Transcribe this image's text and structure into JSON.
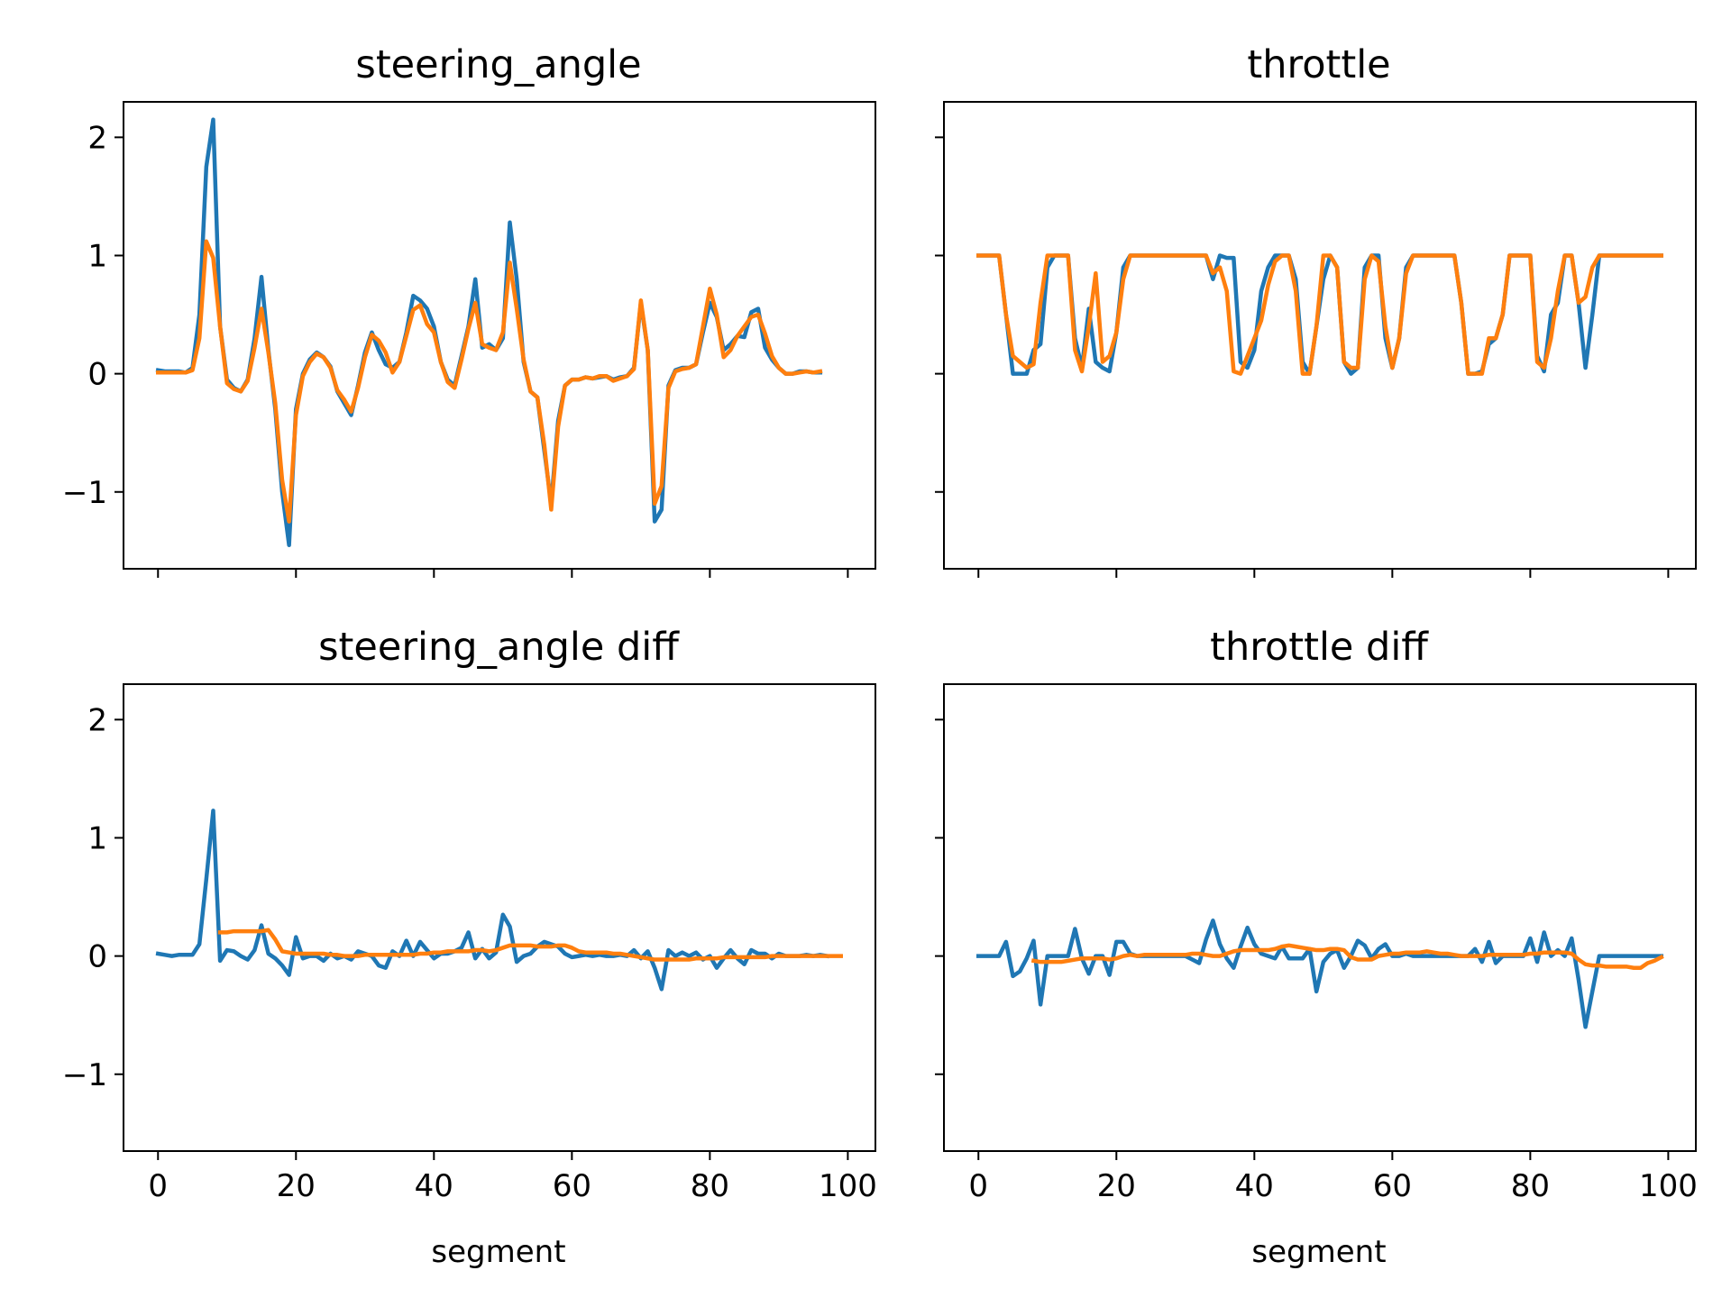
{
  "colors": {
    "raw": "#1f77b4",
    "smoothed": "#ff7f0e",
    "frame": "#000000"
  },
  "chart_data": [
    {
      "type": "line",
      "title": "steering_angle",
      "xlabel": "",
      "ylabel": "",
      "xlim": [
        -5,
        104
      ],
      "ylim": [
        -1.65,
        2.3
      ],
      "xticks": [
        0,
        20,
        40,
        60,
        80,
        100
      ],
      "yticks": [
        -1,
        0,
        1,
        2
      ],
      "ytick_labels": [
        "−1",
        "0",
        "1",
        "2"
      ],
      "show_xtick_labels": false,
      "show_ytick_labels": true,
      "series": [
        {
          "x_start": 0,
          "values": [
            0.03,
            0.02,
            0.02,
            0.02,
            0.01,
            0.05,
            0.5,
            1.75,
            2.15,
            0.4,
            -0.05,
            -0.12,
            -0.15,
            -0.05,
            0.3,
            0.82,
            0.2,
            -0.3,
            -1.0,
            -1.45,
            -0.3,
            0.0,
            0.12,
            0.18,
            0.14,
            0.06,
            -0.15,
            -0.25,
            -0.35,
            -0.1,
            0.18,
            0.35,
            0.2,
            0.08,
            0.05,
            0.1,
            0.35,
            0.66,
            0.62,
            0.55,
            0.4,
            0.1,
            -0.05,
            -0.1,
            0.15,
            0.4,
            0.8,
            0.22,
            0.25,
            0.2,
            0.3,
            1.28,
            0.8,
            0.1,
            -0.15,
            -0.2,
            -0.65,
            -1.1,
            -0.4,
            -0.1,
            -0.05,
            -0.05,
            -0.03,
            -0.04,
            -0.03,
            -0.02,
            -0.05,
            -0.03,
            -0.02,
            0.05,
            0.6,
            0.2,
            -1.25,
            -1.15,
            -0.1,
            0.03,
            0.05,
            0.05,
            0.08,
            0.35,
            0.6,
            0.48,
            0.2,
            0.25,
            0.32,
            0.31,
            0.52,
            0.55,
            0.22,
            0.12,
            0.05,
            0.0,
            0.0,
            0.02,
            0.02,
            0.01,
            0.01
          ]
        },
        {
          "x_start": 0,
          "values": [
            0.01,
            0.01,
            0.01,
            0.01,
            0.01,
            0.03,
            0.3,
            1.12,
            0.98,
            0.4,
            -0.08,
            -0.13,
            -0.15,
            -0.06,
            0.22,
            0.55,
            0.18,
            -0.25,
            -0.9,
            -1.25,
            -0.35,
            -0.02,
            0.1,
            0.17,
            0.14,
            0.05,
            -0.14,
            -0.22,
            -0.32,
            -0.12,
            0.14,
            0.33,
            0.28,
            0.18,
            0.01,
            0.1,
            0.32,
            0.54,
            0.58,
            0.42,
            0.35,
            0.1,
            -0.07,
            -0.12,
            0.12,
            0.38,
            0.6,
            0.25,
            0.22,
            0.2,
            0.35,
            0.94,
            0.55,
            0.12,
            -0.15,
            -0.2,
            -0.6,
            -1.15,
            -0.45,
            -0.1,
            -0.05,
            -0.05,
            -0.03,
            -0.04,
            -0.02,
            -0.02,
            -0.06,
            -0.04,
            -0.02,
            0.04,
            0.62,
            0.2,
            -1.1,
            -0.95,
            -0.12,
            0.02,
            0.04,
            0.05,
            0.08,
            0.4,
            0.72,
            0.5,
            0.14,
            0.2,
            0.32,
            0.4,
            0.48,
            0.5,
            0.34,
            0.15,
            0.05,
            0.0,
            0.0,
            0.01,
            0.02,
            0.01,
            0.02
          ]
        }
      ]
    },
    {
      "type": "line",
      "title": "throttle",
      "xlabel": "",
      "ylabel": "",
      "xlim": [
        -5,
        104
      ],
      "ylim": [
        -1.65,
        2.3
      ],
      "xticks": [
        0,
        20,
        40,
        60,
        80,
        100
      ],
      "yticks": [
        -1,
        0,
        1,
        2
      ],
      "ytick_labels": [
        "−1",
        "0",
        "1",
        "2"
      ],
      "show_xtick_labels": false,
      "show_ytick_labels": false,
      "series": [
        {
          "x_start": 0,
          "values": [
            1,
            1,
            1,
            1,
            0.5,
            0.0,
            0.0,
            0.0,
            0.2,
            0.25,
            0.9,
            1,
            1,
            1,
            0.3,
            0.05,
            0.55,
            0.1,
            0.05,
            0.02,
            0.35,
            0.9,
            1,
            1,
            1,
            1,
            1,
            1,
            1,
            1,
            1,
            1,
            1,
            1,
            0.8,
            1,
            0.98,
            0.98,
            0.1,
            0.05,
            0.2,
            0.7,
            0.9,
            1,
            1,
            1,
            0.8,
            0.1,
            0.0,
            0.4,
            0.8,
            1,
            0.9,
            0.1,
            0.0,
            0.05,
            0.9,
            1,
            1,
            0.3,
            0.05,
            0.3,
            0.9,
            1,
            1,
            1,
            1,
            1,
            1,
            1,
            0.6,
            0.0,
            0.0,
            0.02,
            0.25,
            0.3,
            0.5,
            1,
            1,
            1,
            1,
            0.15,
            0.02,
            0.5,
            0.6,
            1,
            1,
            0.6,
            0.05,
            0.5,
            1,
            1,
            1,
            1,
            1,
            1,
            1,
            1,
            1,
            1
          ]
        },
        {
          "x_start": 0,
          "values": [
            1,
            1,
            1,
            1,
            0.5,
            0.15,
            0.1,
            0.05,
            0.08,
            0.6,
            1,
            1,
            1,
            1,
            0.2,
            0.02,
            0.4,
            0.85,
            0.1,
            0.15,
            0.35,
            0.8,
            1,
            1,
            1,
            1,
            1,
            1,
            1,
            1,
            1,
            1,
            1,
            1,
            0.85,
            0.9,
            0.7,
            0.02,
            0.0,
            0.15,
            0.3,
            0.45,
            0.75,
            0.95,
            1,
            1,
            0.7,
            0.0,
            0.0,
            0.4,
            1,
            1,
            0.9,
            0.1,
            0.05,
            0.05,
            0.8,
            1,
            0.95,
            0.4,
            0.05,
            0.3,
            0.85,
            1,
            1,
            1,
            1,
            1,
            1,
            1,
            0.6,
            0.0,
            0.0,
            0.0,
            0.3,
            0.3,
            0.5,
            1,
            1,
            1,
            1,
            0.1,
            0.05,
            0.3,
            0.7,
            1,
            1,
            0.6,
            0.65,
            0.9,
            1,
            1,
            1,
            1,
            1,
            1,
            1,
            1,
            1,
            1
          ]
        }
      ]
    },
    {
      "type": "line",
      "title": "steering_angle diff",
      "xlabel": "segment",
      "ylabel": "",
      "xlim": [
        -5,
        104
      ],
      "ylim": [
        -1.65,
        2.3
      ],
      "xticks": [
        0,
        20,
        40,
        60,
        80,
        100
      ],
      "xtick_labels": [
        "0",
        "20",
        "40",
        "60",
        "80",
        "100"
      ],
      "yticks": [
        -1,
        0,
        1,
        2
      ],
      "ytick_labels": [
        "−1",
        "0",
        "1",
        "2"
      ],
      "show_xtick_labels": true,
      "show_ytick_labels": true,
      "series": [
        {
          "x_start": 0,
          "values": [
            0.02,
            0.01,
            0.0,
            0.01,
            0.01,
            0.01,
            0.1,
            0.65,
            1.23,
            -0.04,
            0.05,
            0.04,
            0.0,
            -0.03,
            0.05,
            0.26,
            0.02,
            -0.02,
            -0.08,
            -0.16,
            0.16,
            -0.02,
            0.0,
            0.0,
            -0.04,
            0.02,
            -0.02,
            0.0,
            -0.03,
            0.04,
            0.02,
            0.0,
            -0.08,
            -0.1,
            0.04,
            0.0,
            0.13,
            0.0,
            0.12,
            0.05,
            -0.02,
            0.02,
            0.02,
            0.04,
            0.07,
            0.2,
            -0.02,
            0.06,
            -0.02,
            0.03,
            0.35,
            0.25,
            -0.05,
            0.0,
            0.02,
            0.08,
            0.12,
            0.1,
            0.08,
            0.02,
            -0.01,
            0.0,
            0.01,
            0.0,
            0.01,
            0.0,
            0.0,
            0.01,
            0.0,
            0.05,
            -0.02,
            0.04,
            -0.1,
            -0.28,
            0.05,
            0.0,
            0.03,
            0.0,
            0.03,
            -0.03,
            0.0,
            -0.1,
            -0.02,
            0.05,
            -0.02,
            -0.07,
            0.05,
            0.02,
            0.02,
            -0.02,
            0.02,
            0.0,
            0.0,
            0.0,
            0.01,
            0.0,
            0.01,
            0.0
          ]
        },
        {
          "x_start": 9,
          "values": [
            0.2,
            0.2,
            0.21,
            0.21,
            0.21,
            0.21,
            0.21,
            0.22,
            0.14,
            0.04,
            0.03,
            0.02,
            0.02,
            0.02,
            0.02,
            0.02,
            0.01,
            0.01,
            0.0,
            0.0,
            0.0,
            0.01,
            0.01,
            0.01,
            0.01,
            0.01,
            0.01,
            0.01,
            0.01,
            0.02,
            0.02,
            0.03,
            0.03,
            0.04,
            0.04,
            0.04,
            0.04,
            0.05,
            0.05,
            0.04,
            0.05,
            0.07,
            0.09,
            0.09,
            0.09,
            0.09,
            0.08,
            0.08,
            0.08,
            0.09,
            0.09,
            0.07,
            0.04,
            0.03,
            0.03,
            0.03,
            0.03,
            0.02,
            0.02,
            0.01,
            0.0,
            -0.01,
            -0.02,
            -0.03,
            -0.03,
            -0.03,
            -0.03,
            -0.03,
            -0.03,
            -0.02,
            -0.02,
            -0.02,
            -0.02,
            -0.01,
            -0.01,
            -0.01,
            -0.01,
            -0.01,
            -0.01,
            -0.01,
            0.0,
            0.0,
            0.0,
            0.0,
            0.0,
            0.0,
            0.0,
            0.0,
            0.0,
            0.0,
            0.0
          ]
        }
      ]
    },
    {
      "type": "line",
      "title": "throttle diff",
      "xlabel": "segment",
      "ylabel": "",
      "xlim": [
        -5,
        104
      ],
      "ylim": [
        -1.65,
        2.3
      ],
      "xticks": [
        0,
        20,
        40,
        60,
        80,
        100
      ],
      "xtick_labels": [
        "0",
        "20",
        "40",
        "60",
        "80",
        "100"
      ],
      "yticks": [
        -1,
        0,
        1,
        2
      ],
      "ytick_labels": [
        "−1",
        "0",
        "1",
        "2"
      ],
      "show_xtick_labels": true,
      "show_ytick_labels": false,
      "series": [
        {
          "x_start": 0,
          "values": [
            0.0,
            0.0,
            0.0,
            0.0,
            0.12,
            -0.17,
            -0.13,
            -0.02,
            0.13,
            -0.41,
            0.0,
            0.0,
            0.0,
            0.0,
            0.23,
            -0.02,
            -0.15,
            0.0,
            0.0,
            -0.16,
            0.12,
            0.12,
            0.02,
            0.0,
            0.0,
            0.0,
            0.0,
            0.0,
            0.0,
            0.0,
            0.0,
            -0.03,
            -0.06,
            0.14,
            0.3,
            0.1,
            -0.02,
            -0.1,
            0.08,
            0.24,
            0.1,
            0.02,
            0.0,
            -0.02,
            0.08,
            -0.02,
            -0.02,
            -0.02,
            0.06,
            -0.3,
            -0.05,
            0.02,
            0.05,
            -0.1,
            0.0,
            0.13,
            0.09,
            -0.02,
            0.06,
            0.1,
            0.0,
            0.0,
            0.02,
            0.0,
            0.0,
            0.0,
            0.0,
            0.0,
            0.0,
            0.0,
            0.0,
            0.0,
            0.06,
            -0.05,
            0.12,
            -0.06,
            0.0,
            0.0,
            0.0,
            0.0,
            0.15,
            -0.05,
            0.2,
            0.0,
            0.05,
            0.0,
            0.15,
            -0.2,
            -0.6,
            -0.3,
            0.0,
            0.0,
            0.0,
            0.0,
            0.0,
            0.0,
            0.0,
            0.0,
            0.0,
            0.0
          ]
        },
        {
          "x_start": 8,
          "values": [
            -0.04,
            -0.05,
            -0.05,
            -0.05,
            -0.05,
            -0.04,
            -0.03,
            -0.02,
            -0.02,
            -0.02,
            -0.02,
            -0.03,
            -0.02,
            0.0,
            0.01,
            0.0,
            0.01,
            0.01,
            0.01,
            0.01,
            0.01,
            0.01,
            0.01,
            0.02,
            0.02,
            0.01,
            0.0,
            0.0,
            0.02,
            0.04,
            0.05,
            0.05,
            0.05,
            0.05,
            0.05,
            0.06,
            0.08,
            0.09,
            0.08,
            0.07,
            0.06,
            0.05,
            0.05,
            0.06,
            0.06,
            0.05,
            -0.01,
            -0.03,
            -0.03,
            -0.03,
            0.0,
            0.01,
            0.02,
            0.02,
            0.03,
            0.03,
            0.03,
            0.04,
            0.03,
            0.02,
            0.02,
            0.01,
            0.0,
            0.0,
            0.0,
            0.0,
            0.01,
            0.01,
            0.01,
            0.01,
            0.01,
            0.01,
            0.02,
            0.02,
            0.03,
            0.03,
            0.03,
            0.03,
            0.02,
            -0.03,
            -0.07,
            -0.08,
            -0.08,
            -0.09,
            -0.09,
            -0.09,
            -0.09,
            -0.1,
            -0.1,
            -0.06,
            -0.04,
            -0.01
          ]
        }
      ]
    }
  ]
}
